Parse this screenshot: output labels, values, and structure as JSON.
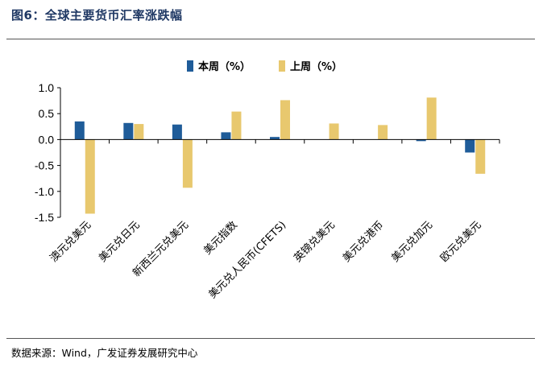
{
  "figure": {
    "title": "图6：全球主要货币汇率涨跌幅",
    "source": "数据来源：Wind，广发证券发展研究中心"
  },
  "chart_data": {
    "type": "bar",
    "title": "",
    "xlabel": "",
    "ylabel": "",
    "ylim": [
      -1.5,
      1.0
    ],
    "yticks": [
      "1.0",
      "0.5",
      "0.0",
      "-0.5",
      "-1.0",
      "-1.5"
    ],
    "yticks_values": [
      1.0,
      0.5,
      0.0,
      -0.5,
      -1.0,
      -1.5
    ],
    "grid": false,
    "legend_position": "top-center",
    "categories": [
      "澳元兑美元",
      "美元兑日元",
      "新西兰元兑美元",
      "美元指数",
      "美元兑人民币(CFETS)",
      "英镑兑美元",
      "美元兑港币",
      "美元兑加元",
      "欧元兑美元"
    ],
    "series": [
      {
        "name": "本周（%）",
        "color": "#1f5c99",
        "values": [
          0.35,
          0.32,
          0.29,
          0.14,
          0.05,
          0.0,
          0.0,
          -0.03,
          -0.25
        ]
      },
      {
        "name": "上周（%）",
        "color": "#e8c86e",
        "values": [
          -1.43,
          0.3,
          -0.93,
          0.54,
          0.76,
          0.31,
          0.28,
          0.81,
          -0.66
        ]
      }
    ]
  }
}
